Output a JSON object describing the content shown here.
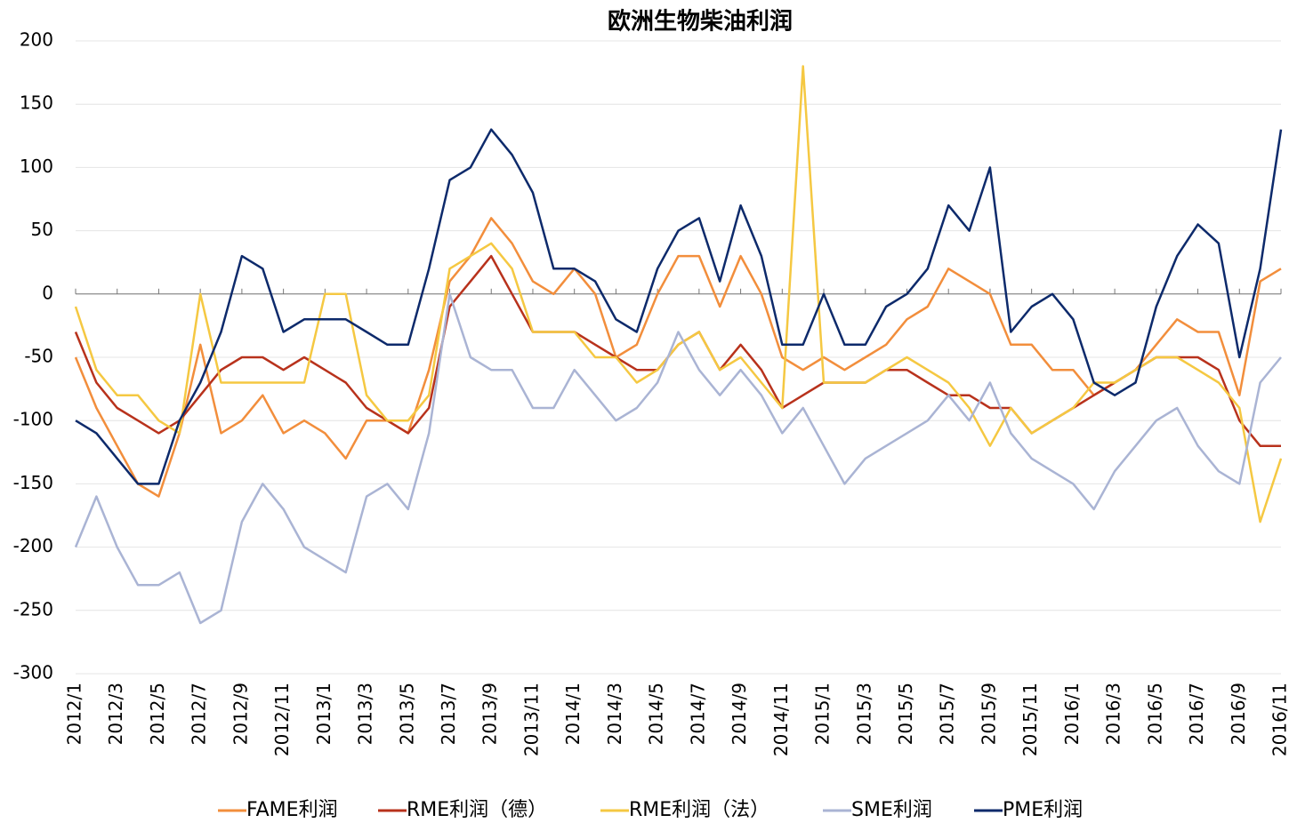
{
  "chart_data": {
    "type": "line",
    "title": "欧洲生物柴油利润",
    "categories": [
      "2012/1",
      null,
      "2012/3",
      null,
      "2012/5",
      null,
      "2012/7",
      null,
      "2012/9",
      null,
      "2012/11",
      null,
      "2013/1",
      null,
      "2013/3",
      null,
      "2013/5",
      null,
      "2013/7",
      null,
      "2013/9",
      null,
      "2013/11",
      null,
      "2014/1",
      null,
      "2014/3",
      null,
      "2014/5",
      null,
      "2014/7",
      null,
      "2014/9",
      null,
      "2014/11",
      null,
      "2015/1",
      null,
      "2015/3",
      null,
      "2015/5",
      null,
      "2015/7",
      null,
      "2015/9",
      null,
      "2015/11",
      null,
      "2016/1",
      null,
      "2016/3",
      null,
      "2016/5",
      null,
      "2016/7",
      null,
      "2016/9",
      null,
      "2016/11"
    ],
    "series": [
      {
        "name": "FAME利润",
        "color": "#f28e3c",
        "values": [
          -50,
          -90,
          -120,
          -150,
          -160,
          -110,
          -40,
          -110,
          -100,
          -80,
          -110,
          -100,
          -110,
          -130,
          -100,
          -100,
          -110,
          -60,
          10,
          30,
          60,
          40,
          10,
          0,
          20,
          0,
          -50,
          -40,
          0,
          30,
          30,
          -10,
          30,
          0,
          -50,
          -60,
          -50,
          -60,
          -50,
          -40,
          -20,
          -10,
          20,
          10,
          0,
          -40,
          -40,
          -60,
          -60,
          -80,
          -70,
          -60,
          -40,
          -20,
          -30,
          -30,
          -80,
          10,
          20
        ]
      },
      {
        "name": "RME利润（德）",
        "color": "#b8321c",
        "values": [
          -30,
          -70,
          -90,
          -100,
          -110,
          -100,
          -80,
          -60,
          -50,
          -50,
          -60,
          -50,
          -60,
          -70,
          -90,
          -100,
          -110,
          -90,
          -10,
          10,
          30,
          0,
          -30,
          -30,
          -30,
          -40,
          -50,
          -60,
          -60,
          -40,
          -30,
          -60,
          -40,
          -60,
          -90,
          -80,
          -70,
          -70,
          -70,
          -60,
          -60,
          -70,
          -80,
          -80,
          -90,
          -90,
          -110,
          -100,
          -90,
          -80,
          -70,
          -60,
          -50,
          -50,
          -50,
          -60,
          -100,
          -120,
          -120
        ]
      },
      {
        "name": "RME利润（法）",
        "color": "#f5c842",
        "values": [
          -10,
          -60,
          -80,
          -80,
          -100,
          -110,
          0,
          -70,
          -70,
          -70,
          -70,
          -70,
          0,
          0,
          -80,
          -100,
          -100,
          -80,
          20,
          30,
          40,
          20,
          -30,
          -30,
          -30,
          -50,
          -50,
          -70,
          -60,
          -40,
          -30,
          -60,
          -50,
          -70,
          -90,
          180,
          -70,
          -70,
          -70,
          -60,
          -50,
          -60,
          -70,
          -90,
          -120,
          -90,
          -110,
          -100,
          -90,
          -70,
          -70,
          -60,
          -50,
          -50,
          -60,
          -70,
          -90,
          -180,
          -130
        ]
      },
      {
        "name": "SME利润",
        "color": "#aab4d4",
        "values": [
          -200,
          -160,
          -200,
          -230,
          -230,
          -220,
          -260,
          -250,
          -180,
          -150,
          -170,
          -200,
          -210,
          -220,
          -160,
          -150,
          -170,
          -110,
          0,
          -50,
          -60,
          -60,
          -90,
          -90,
          -60,
          -80,
          -100,
          -90,
          -70,
          -30,
          -60,
          -80,
          -60,
          -80,
          -110,
          -90,
          -120,
          -150,
          -130,
          -120,
          -110,
          -100,
          -80,
          -100,
          -70,
          -110,
          -130,
          -140,
          -150,
          -170,
          -140,
          -120,
          -100,
          -90,
          -120,
          -140,
          -150,
          -70,
          -50
        ]
      },
      {
        "name": "PME利润",
        "color": "#0d2a6b",
        "values": [
          -100,
          -110,
          -130,
          -150,
          -150,
          -100,
          -70,
          -30,
          30,
          20,
          -30,
          -20,
          -20,
          -20,
          -30,
          -40,
          -40,
          20,
          90,
          100,
          130,
          110,
          80,
          20,
          20,
          10,
          -20,
          -30,
          20,
          50,
          60,
          10,
          70,
          30,
          -40,
          -40,
          0,
          -40,
          -40,
          -10,
          0,
          20,
          70,
          50,
          100,
          -30,
          -10,
          0,
          -20,
          -70,
          -80,
          -70,
          -10,
          30,
          55,
          40,
          -50,
          20,
          130
        ]
      }
    ],
    "ylim": [
      -300,
      200
    ],
    "yticks": [
      -300,
      -250,
      -200,
      -150,
      -100,
      -50,
      0,
      50,
      100,
      150,
      200
    ],
    "grid": true
  }
}
